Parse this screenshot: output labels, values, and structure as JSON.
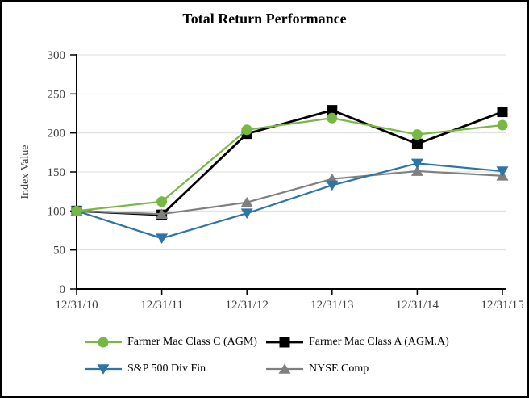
{
  "chart_data": {
    "type": "line",
    "title": "Total Return Performance",
    "xlabel": "",
    "ylabel": "Index Value",
    "categories": [
      "12/31/10",
      "12/31/11",
      "12/31/12",
      "12/31/13",
      "12/31/14",
      "12/31/15"
    ],
    "series": [
      {
        "name": "Farmer Mac Class C (AGM)",
        "marker": "circle",
        "color": "#77B843",
        "values": [
          100,
          112,
          204,
          219,
          198,
          210
        ]
      },
      {
        "name": "Farmer Mac Class A (AGM.A)",
        "marker": "square",
        "color": "#000000",
        "values": [
          100,
          95,
          199,
          229,
          186,
          227
        ]
      },
      {
        "name": "S&P 500 Div Fin",
        "marker": "triangle-down",
        "color": "#2E74A4",
        "values": [
          100,
          65,
          97,
          133,
          161,
          151
        ]
      },
      {
        "name": "NYSE Comp",
        "marker": "triangle-up",
        "color": "#7F7F7F",
        "values": [
          100,
          96,
          111,
          141,
          151,
          145
        ]
      }
    ],
    "ylim": [
      0,
      300
    ],
    "yticks": [
      0,
      50,
      100,
      150,
      200,
      250,
      300
    ],
    "grid": "horizontal",
    "legend_position": "bottom",
    "style": {
      "grid_color": "#DCDCDC",
      "axis_color": "#000000",
      "tick_label_color": "#404040",
      "background": "#FFFFFF",
      "border_color": "#000000"
    }
  }
}
